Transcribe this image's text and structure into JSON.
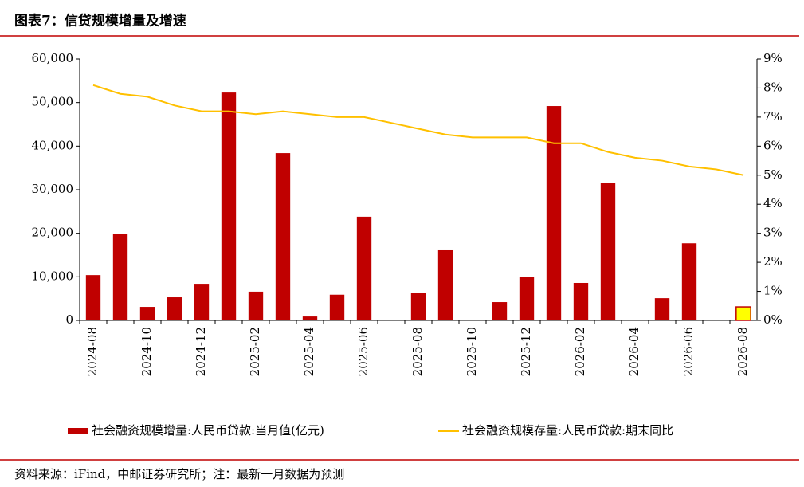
{
  "header": {
    "title": "图表7：信贷规模增量及增速"
  },
  "chart_data": {
    "type": "bar-line",
    "categories": [
      "2024-08",
      null,
      "2024-10",
      null,
      "2024-12",
      null,
      "2025-02",
      null,
      "2025-04",
      null,
      "2025-06",
      null,
      "2025-08",
      null,
      "2025-10",
      null,
      "2025-12",
      null,
      "2026-02",
      null,
      "2026-04",
      null,
      "2026-06",
      null,
      "2026-08"
    ],
    "series": [
      {
        "name": "社会融资规模增量:人民币贷款:当月值(亿元)",
        "color": "#c00000",
        "type": "bar",
        "point_colors": [
          "#c00000",
          "#c00000",
          "#c00000",
          "#c00000",
          "#c00000",
          "#c00000",
          "#c00000",
          "#c00000",
          "#c00000",
          "#c00000",
          "#c00000",
          "#c00000",
          "#c00000",
          "#c00000",
          "#c00000",
          "#c00000",
          "#c00000",
          "#c00000",
          "#c00000",
          "#c00000",
          "#c00000",
          "#c00000",
          "#c00000",
          "#c00000",
          "#ffff00"
        ],
        "values": [
          10400,
          19800,
          3100,
          5300,
          8400,
          52300,
          6600,
          38400,
          900,
          5900,
          23800,
          100,
          6400,
          16100,
          100,
          4200,
          9900,
          49200,
          8600,
          31600,
          100,
          5100,
          17700,
          100,
          3100
        ]
      },
      {
        "name": "社会融资规模存量:人民币贷款:期末同比",
        "color": "#ffc000",
        "type": "line",
        "axis": "y2",
        "values": [
          8.1,
          7.8,
          7.7,
          7.4,
          7.2,
          7.2,
          7.1,
          7.2,
          7.1,
          7.0,
          7.0,
          6.8,
          6.6,
          6.4,
          6.3,
          6.3,
          6.3,
          6.1,
          6.1,
          5.8,
          5.6,
          5.5,
          5.3,
          5.2,
          5.0
        ]
      }
    ],
    "ylim": [
      0,
      60000
    ],
    "yticks": [
      0,
      {
        "value": 10000,
        "label": "10,000"
      },
      {
        "value": 20000,
        "label": "20,000"
      },
      {
        "value": 30000,
        "label": "30,000"
      },
      {
        "value": 40000,
        "label": "40,000"
      },
      {
        "value": 50000,
        "label": "50,000"
      },
      {
        "value": 60000,
        "label": "60,000"
      }
    ],
    "y2lim": [
      0,
      9
    ],
    "y2ticks": [
      {
        "value": 0,
        "label": "0%"
      },
      {
        "value": 1,
        "label": "1%"
      },
      {
        "value": 2,
        "label": "2%"
      },
      {
        "value": 3,
        "label": "3%"
      },
      {
        "value": 4,
        "label": "4%"
      },
      {
        "value": 5,
        "label": "5%"
      },
      {
        "value": 6,
        "label": "6%"
      },
      {
        "value": 7,
        "label": "7%"
      },
      {
        "value": 8,
        "label": "8%"
      },
      {
        "value": 9,
        "label": "9%"
      }
    ],
    "grid": false,
    "legend": "bottom"
  },
  "footer": {
    "source": "资料来源：iFind，中邮证券研究所；注：最新一月数据为预测"
  }
}
